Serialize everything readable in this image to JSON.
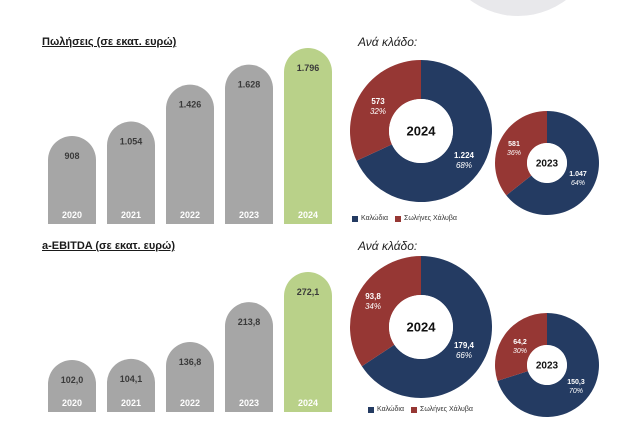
{
  "colors": {
    "bar_gray": "#a6a6a6",
    "bar_green": "#b9d189",
    "navy": "#243b62",
    "red": "#963734"
  },
  "sales": {
    "title": "Πωλήσεις (σε εκατ. ευρώ)",
    "subtitle": "Ανά κλάδο:"
  },
  "ebitda": {
    "title": "a-EBITDA (σε εκατ. ευρώ)",
    "subtitle": "Ανά κλάδο:"
  },
  "legend_top": {
    "a": "Καλώδια",
    "b": "Σωλήνες Χάλυβα"
  },
  "legend_bottom": {
    "a": "Καλώδια",
    "b": "Σωλήνες Χάλυβα"
  },
  "chart_data": [
    {
      "type": "bar",
      "title": "Πωλήσεις (σε εκατ. ευρώ)",
      "categories": [
        "2020",
        "2021",
        "2022",
        "2023",
        "2024"
      ],
      "values": [
        908,
        1054,
        1426,
        1628,
        1796
      ],
      "value_labels": [
        "908",
        "1.054",
        "1.426",
        "1.628",
        "1.796"
      ],
      "highlight": "2024"
    },
    {
      "type": "pie",
      "center_label": "2024",
      "slices": [
        {
          "name": "Καλώδια",
          "value": 1224,
          "label": "1.224",
          "pct": "68%"
        },
        {
          "name": "Σωλήνες Χάλυβα",
          "value": 573,
          "label": "573",
          "pct": "32%"
        }
      ]
    },
    {
      "type": "pie",
      "center_label": "2023",
      "slices": [
        {
          "name": "Καλώδια",
          "value": 1047,
          "label": "1.047",
          "pct": "64%"
        },
        {
          "name": "Σωλήνες Χάλυβα",
          "value": 581,
          "label": "581",
          "pct": "36%"
        }
      ]
    },
    {
      "type": "bar",
      "title": "a-EBITDA (σε εκατ. ευρώ)",
      "categories": [
        "2020",
        "2021",
        "2022",
        "2023",
        "2024"
      ],
      "values": [
        102.0,
        104.1,
        136.8,
        213.8,
        272.1
      ],
      "value_labels": [
        "102,0",
        "104,1",
        "136,8",
        "213,8",
        "272,1"
      ],
      "highlight": "2024"
    },
    {
      "type": "pie",
      "center_label": "2024",
      "slices": [
        {
          "name": "Καλώδια",
          "value": 179.4,
          "label": "179,4",
          "pct": "66%"
        },
        {
          "name": "Σωλήνες Χάλυβα",
          "value": 93.8,
          "label": "93,8",
          "pct": "34%"
        }
      ]
    },
    {
      "type": "pie",
      "center_label": "2023",
      "slices": [
        {
          "name": "Καλώδια",
          "value": 150.3,
          "label": "150,3",
          "pct": "70%"
        },
        {
          "name": "Σωλήνες Χάλυβα",
          "value": 64.2,
          "label": "64,2",
          "pct": "30%"
        }
      ]
    }
  ]
}
